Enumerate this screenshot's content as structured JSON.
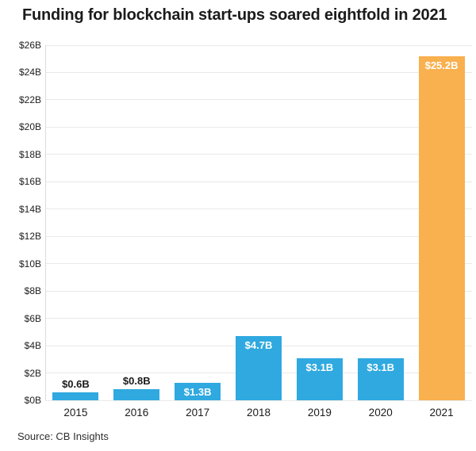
{
  "title": "Funding for blockchain start-ups soared eightfold in 2021",
  "source": "Source: CB Insights",
  "chart_data": {
    "type": "bar",
    "title": "Funding for blockchain start-ups soared eightfold in 2021",
    "categories": [
      "2015",
      "2016",
      "2017",
      "2018",
      "2019",
      "2020",
      "2021"
    ],
    "values": [
      0.6,
      0.8,
      1.3,
      4.7,
      3.1,
      3.1,
      25.2
    ],
    "value_labels": [
      "$0.6B",
      "$0.8B",
      "$1.3B",
      "$4.7B",
      "$3.1B",
      "$3.1B",
      "$25.2B"
    ],
    "value_label_placement": [
      "above",
      "above",
      "inside",
      "inside",
      "inside",
      "inside",
      "inside"
    ],
    "xlabel": "",
    "ylabel": "",
    "ylim": [
      0,
      26
    ],
    "ytick_step": 2,
    "ytick_labels": [
      "$0B",
      "$2B",
      "$4B",
      "$6B",
      "$8B",
      "$10B",
      "$12B",
      "$14B",
      "$16B",
      "$18B",
      "$20B",
      "$22B",
      "$24B",
      "$26B"
    ],
    "grid": true,
    "legend": "none",
    "bar_color": "#2FA9E0",
    "highlight_color": "#F9B04E",
    "highlight_index": 6,
    "source": "Source: CB Insights"
  },
  "colors": {
    "background": "#ffffff",
    "gridline": "#e9e9e9",
    "axis_line": "#dcdcdc",
    "title_text": "#1b1b1b",
    "label_above_text": "#1b1b1b",
    "label_inside_text": "#ffffff"
  }
}
